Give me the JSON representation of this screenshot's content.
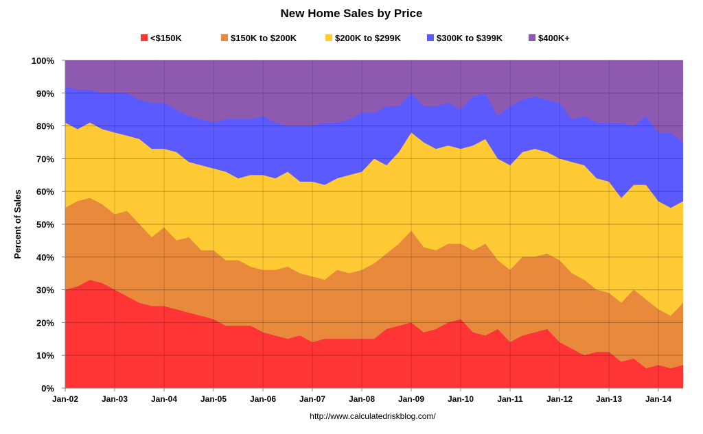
{
  "chart_data": {
    "type": "area",
    "stacked": true,
    "title": "New Home Sales by Price",
    "xlabel": "",
    "ylabel": "Percent of Sales",
    "footer": "http://www.calculatedriskblog.com/",
    "ylim": [
      0,
      100
    ],
    "yticks": [
      "0%",
      "10%",
      "20%",
      "30%",
      "40%",
      "50%",
      "60%",
      "70%",
      "80%",
      "90%",
      "100%"
    ],
    "xticks": [
      "Jan-02",
      "Jan-03",
      "Jan-04",
      "Jan-05",
      "Jan-06",
      "Jan-07",
      "Jan-08",
      "Jan-09",
      "Jan-10",
      "Jan-11",
      "Jan-12",
      "Jan-13",
      "Jan-14"
    ],
    "grid": true,
    "legend_position": "top",
    "x": [
      "2002-01",
      "2002-04",
      "2002-07",
      "2002-10",
      "2003-01",
      "2003-04",
      "2003-07",
      "2003-10",
      "2004-01",
      "2004-04",
      "2004-07",
      "2004-10",
      "2005-01",
      "2005-04",
      "2005-07",
      "2005-10",
      "2006-01",
      "2006-04",
      "2006-07",
      "2006-10",
      "2007-01",
      "2007-04",
      "2007-07",
      "2007-10",
      "2008-01",
      "2008-04",
      "2008-07",
      "2008-10",
      "2009-01",
      "2009-04",
      "2009-07",
      "2009-10",
      "2010-01",
      "2010-04",
      "2010-07",
      "2010-10",
      "2011-01",
      "2011-04",
      "2011-07",
      "2011-10",
      "2012-01",
      "2012-04",
      "2012-07",
      "2012-10",
      "2013-01",
      "2013-04",
      "2013-07",
      "2013-10",
      "2014-01",
      "2014-04",
      "2014-07"
    ],
    "series": [
      {
        "name": "<$150K",
        "color": "#FF3434",
        "values": [
          30,
          31,
          33,
          32,
          30,
          28,
          26,
          25,
          25,
          24,
          23,
          22,
          21,
          19,
          19,
          19,
          17,
          16,
          15,
          16,
          14,
          15,
          15,
          15,
          15,
          15,
          18,
          19,
          20,
          17,
          18,
          20,
          21,
          17,
          16,
          18,
          14,
          16,
          17,
          18,
          14,
          12,
          10,
          11,
          11,
          8,
          9,
          6,
          7,
          6,
          7
        ]
      },
      {
        "name": "$150K to $200K",
        "color": "#E8893B",
        "values": [
          25,
          26,
          25,
          24,
          23,
          26,
          24,
          21,
          24,
          21,
          23,
          20,
          21,
          20,
          20,
          18,
          19,
          20,
          22,
          19,
          20,
          18,
          21,
          20,
          21,
          23,
          23,
          25,
          28,
          26,
          24,
          24,
          23,
          25,
          28,
          21,
          22,
          24,
          23,
          23,
          25,
          23,
          23,
          19,
          18,
          18,
          21,
          21,
          17,
          16,
          19
        ]
      },
      {
        "name": "$200K to $299K",
        "color": "#FFCA33",
        "values": [
          26,
          22,
          23,
          23,
          25,
          23,
          26,
          27,
          24,
          27,
          23,
          26,
          25,
          27,
          25,
          28,
          29,
          28,
          29,
          28,
          29,
          29,
          28,
          30,
          30,
          32,
          27,
          28,
          30,
          32,
          31,
          30,
          29,
          32,
          32,
          31,
          32,
          32,
          33,
          31,
          31,
          34,
          35,
          34,
          34,
          32,
          32,
          35,
          33,
          33,
          31
        ]
      },
      {
        "name": "$300K to $399K",
        "color": "#5A5AFF",
        "values": [
          11,
          12,
          10,
          11,
          12,
          13,
          12,
          14,
          14,
          13,
          14,
          14,
          14,
          16,
          18,
          17,
          18,
          17,
          14,
          17,
          17,
          19,
          17,
          17,
          18,
          14,
          18,
          14,
          12,
          11,
          13,
          13,
          12,
          15,
          14,
          13,
          18,
          16,
          16,
          16,
          17,
          13,
          15,
          17,
          18,
          23,
          18,
          21,
          21,
          23,
          18
        ]
      },
      {
        "name": "$400K+",
        "color": "#8E5AB0",
        "values": [
          8,
          9,
          9,
          10,
          10,
          10,
          12,
          13,
          13,
          15,
          17,
          18,
          19,
          18,
          18,
          18,
          17,
          19,
          20,
          20,
          20,
          19,
          19,
          18,
          16,
          16,
          14,
          14,
          10,
          14,
          14,
          13,
          15,
          11,
          10,
          17,
          14,
          12,
          11,
          12,
          13,
          18,
          17,
          19,
          19,
          19,
          20,
          17,
          22,
          22,
          25
        ]
      }
    ]
  }
}
